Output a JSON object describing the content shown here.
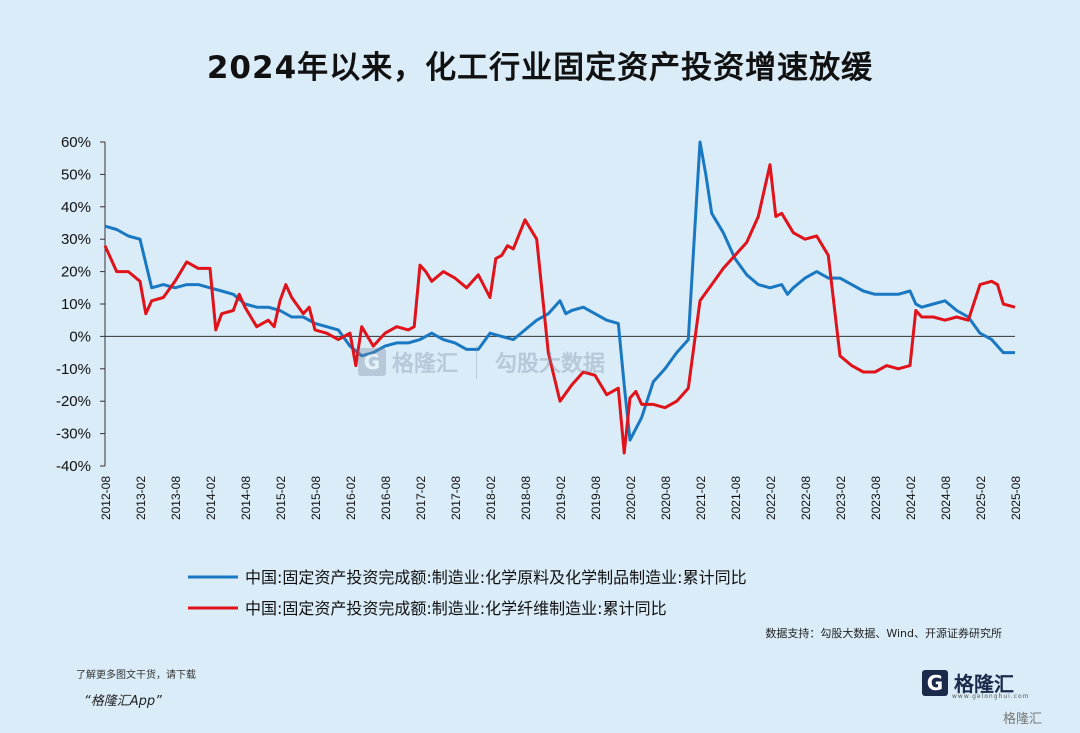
{
  "title": "2024年以来，化工行业固定资产投资增速放缓",
  "source": "数据支持：勾股大数据、Wind、开源证券研究所",
  "footer": {
    "note": "了解更多图文干货，请下载",
    "app": "“格隆汇App”"
  },
  "logo": {
    "mark": "G",
    "text": "格隆汇",
    "sub": "www.gelonghui.com"
  },
  "watermark": {
    "corner": "格隆汇",
    "center_left": "格隆汇",
    "center_right": "勾股大数据"
  },
  "colors": {
    "blue": "#1a78c2",
    "red": "#e0121a",
    "background": "#d9ecf8"
  },
  "chart_data": {
    "type": "line",
    "ylim": [
      -40,
      60
    ],
    "y_ticks": [
      60,
      50,
      40,
      30,
      20,
      10,
      0,
      -10,
      -20,
      -30,
      -40
    ],
    "y_tick_labels": [
      "60%",
      "50%",
      "40%",
      "30%",
      "20%",
      "10%",
      "0%",
      "-10%",
      "-20%",
      "-30%",
      "-40%"
    ],
    "x_tick_labels": [
      "2012-08",
      "2013-02",
      "2013-08",
      "2014-02",
      "2014-08",
      "2015-02",
      "2015-08",
      "2016-02",
      "2016-08",
      "2017-02",
      "2017-08",
      "2018-02",
      "2018-08",
      "2019-02",
      "2019-08",
      "2020-02",
      "2020-08",
      "2021-02",
      "2021-08",
      "2022-02",
      "2022-08",
      "2023-02",
      "2023-08",
      "2024-02",
      "2024-08",
      "2025-02",
      "2025-08"
    ],
    "series": [
      {
        "name": "中国:固定资产投资完成额:制造业:化学原料及化学制品制造业:累计同比",
        "color": "#1a78c2",
        "points": [
          [
            "2012-08",
            34
          ],
          [
            "2012-10",
            33
          ],
          [
            "2012-12",
            31
          ],
          [
            "2013-02",
            30
          ],
          [
            "2013-04",
            15
          ],
          [
            "2013-06",
            16
          ],
          [
            "2013-08",
            15
          ],
          [
            "2013-10",
            16
          ],
          [
            "2013-12",
            16
          ],
          [
            "2014-02",
            15
          ],
          [
            "2014-04",
            14
          ],
          [
            "2014-06",
            13
          ],
          [
            "2014-08",
            10
          ],
          [
            "2014-10",
            9
          ],
          [
            "2014-12",
            9
          ],
          [
            "2015-02",
            8
          ],
          [
            "2015-04",
            6
          ],
          [
            "2015-06",
            6
          ],
          [
            "2015-08",
            4
          ],
          [
            "2015-10",
            3
          ],
          [
            "2015-12",
            2
          ],
          [
            "2016-02",
            -3
          ],
          [
            "2016-04",
            -6
          ],
          [
            "2016-06",
            -5
          ],
          [
            "2016-08",
            -3
          ],
          [
            "2016-10",
            -2
          ],
          [
            "2016-12",
            -2
          ],
          [
            "2017-02",
            -1
          ],
          [
            "2017-04",
            1
          ],
          [
            "2017-06",
            -1
          ],
          [
            "2017-08",
            -2
          ],
          [
            "2017-10",
            -4
          ],
          [
            "2017-12",
            -4
          ],
          [
            "2018-02",
            1
          ],
          [
            "2018-04",
            0
          ],
          [
            "2018-06",
            -1
          ],
          [
            "2018-08",
            2
          ],
          [
            "2018-10",
            5
          ],
          [
            "2018-12",
            7
          ],
          [
            "2019-02",
            11
          ],
          [
            "2019-03",
            7
          ],
          [
            "2019-04",
            8
          ],
          [
            "2019-06",
            9
          ],
          [
            "2019-08",
            7
          ],
          [
            "2019-10",
            5
          ],
          [
            "2019-12",
            4
          ],
          [
            "2020-01",
            -15
          ],
          [
            "2020-02",
            -32
          ],
          [
            "2020-04",
            -25
          ],
          [
            "2020-06",
            -14
          ],
          [
            "2020-08",
            -10
          ],
          [
            "2020-10",
            -5
          ],
          [
            "2020-12",
            -1
          ],
          [
            "2021-01",
            30
          ],
          [
            "2021-02",
            60
          ],
          [
            "2021-03",
            50
          ],
          [
            "2021-04",
            38
          ],
          [
            "2021-06",
            32
          ],
          [
            "2021-08",
            24
          ],
          [
            "2021-10",
            19
          ],
          [
            "2021-12",
            16
          ],
          [
            "2022-02",
            15
          ],
          [
            "2022-04",
            16
          ],
          [
            "2022-05",
            13
          ],
          [
            "2022-06",
            15
          ],
          [
            "2022-08",
            18
          ],
          [
            "2022-10",
            20
          ],
          [
            "2022-12",
            18
          ],
          [
            "2023-02",
            18
          ],
          [
            "2023-04",
            16
          ],
          [
            "2023-06",
            14
          ],
          [
            "2023-08",
            13
          ],
          [
            "2023-10",
            13
          ],
          [
            "2023-12",
            13
          ],
          [
            "2024-02",
            14
          ],
          [
            "2024-03",
            10
          ],
          [
            "2024-04",
            9
          ],
          [
            "2024-06",
            10
          ],
          [
            "2024-08",
            11
          ],
          [
            "2024-10",
            8
          ],
          [
            "2024-12",
            6
          ],
          [
            "2025-02",
            1
          ],
          [
            "2025-04",
            -1
          ],
          [
            "2025-06",
            -5
          ],
          [
            "2025-08",
            -5
          ]
        ]
      },
      {
        "name": "中国:固定资产投资完成额:制造业:化学纤维制造业:累计同比",
        "color": "#e0121a",
        "points": [
          [
            "2012-08",
            28
          ],
          [
            "2012-10",
            20
          ],
          [
            "2012-12",
            20
          ],
          [
            "2013-02",
            17
          ],
          [
            "2013-03",
            7
          ],
          [
            "2013-04",
            11
          ],
          [
            "2013-06",
            12
          ],
          [
            "2013-08",
            17
          ],
          [
            "2013-10",
            23
          ],
          [
            "2013-12",
            21
          ],
          [
            "2014-02",
            21
          ],
          [
            "2014-03",
            2
          ],
          [
            "2014-04",
            7
          ],
          [
            "2014-06",
            8
          ],
          [
            "2014-07",
            13
          ],
          [
            "2014-08",
            9
          ],
          [
            "2014-10",
            3
          ],
          [
            "2014-12",
            5
          ],
          [
            "2015-01",
            3
          ],
          [
            "2015-02",
            11
          ],
          [
            "2015-03",
            16
          ],
          [
            "2015-04",
            12
          ],
          [
            "2015-06",
            7
          ],
          [
            "2015-07",
            9
          ],
          [
            "2015-08",
            2
          ],
          [
            "2015-10",
            1
          ],
          [
            "2015-12",
            -1
          ],
          [
            "2016-02",
            1
          ],
          [
            "2016-03",
            -9
          ],
          [
            "2016-04",
            3
          ],
          [
            "2016-06",
            -3
          ],
          [
            "2016-08",
            1
          ],
          [
            "2016-10",
            3
          ],
          [
            "2016-12",
            2
          ],
          [
            "2017-01",
            3
          ],
          [
            "2017-02",
            22
          ],
          [
            "2017-03",
            20
          ],
          [
            "2017-04",
            17
          ],
          [
            "2017-06",
            20
          ],
          [
            "2017-08",
            18
          ],
          [
            "2017-10",
            15
          ],
          [
            "2017-12",
            19
          ],
          [
            "2018-02",
            12
          ],
          [
            "2018-03",
            24
          ],
          [
            "2018-04",
            25
          ],
          [
            "2018-05",
            28
          ],
          [
            "2018-06",
            27
          ],
          [
            "2018-08",
            36
          ],
          [
            "2018-10",
            30
          ],
          [
            "2018-12",
            -5
          ],
          [
            "2019-02",
            -20
          ],
          [
            "2019-04",
            -15
          ],
          [
            "2019-06",
            -11
          ],
          [
            "2019-08",
            -12
          ],
          [
            "2019-10",
            -18
          ],
          [
            "2019-12",
            -16
          ],
          [
            "2020-01",
            -36
          ],
          [
            "2020-02",
            -19
          ],
          [
            "2020-03",
            -17
          ],
          [
            "2020-04",
            -21
          ],
          [
            "2020-06",
            -21
          ],
          [
            "2020-08",
            -22
          ],
          [
            "2020-10",
            -20
          ],
          [
            "2020-12",
            -16
          ],
          [
            "2021-02",
            11
          ],
          [
            "2021-04",
            16
          ],
          [
            "2021-06",
            21
          ],
          [
            "2021-08",
            25
          ],
          [
            "2021-10",
            29
          ],
          [
            "2021-12",
            37
          ],
          [
            "2022-02",
            53
          ],
          [
            "2022-03",
            37
          ],
          [
            "2022-04",
            38
          ],
          [
            "2022-06",
            32
          ],
          [
            "2022-08",
            30
          ],
          [
            "2022-10",
            31
          ],
          [
            "2022-12",
            25
          ],
          [
            "2023-02",
            -6
          ],
          [
            "2023-04",
            -9
          ],
          [
            "2023-06",
            -11
          ],
          [
            "2023-08",
            -11
          ],
          [
            "2023-10",
            -9
          ],
          [
            "2023-12",
            -10
          ],
          [
            "2024-02",
            -9
          ],
          [
            "2024-03",
            8
          ],
          [
            "2024-04",
            6
          ],
          [
            "2024-06",
            6
          ],
          [
            "2024-08",
            5
          ],
          [
            "2024-10",
            6
          ],
          [
            "2024-12",
            5
          ],
          [
            "2025-02",
            16
          ],
          [
            "2025-04",
            17
          ],
          [
            "2025-05",
            16
          ],
          [
            "2025-06",
            10
          ],
          [
            "2025-08",
            9
          ]
        ]
      }
    ]
  }
}
